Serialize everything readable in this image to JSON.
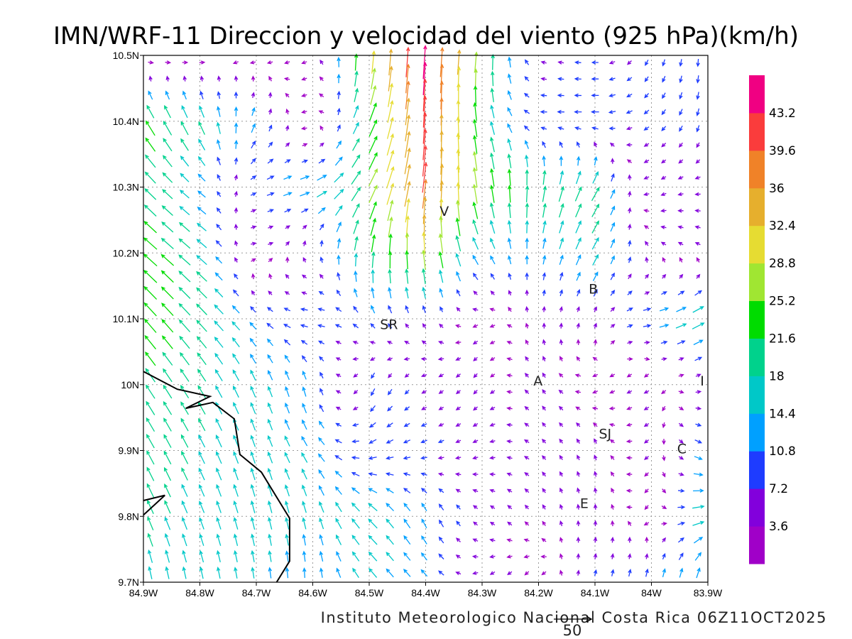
{
  "chart_data": {
    "type": "vector-field",
    "title": "IMN/WRF-11 Direccion y velocidad del viento (925 hPa)(km/h)",
    "credit": "Instituto Meteorologico Nacional Costa Rica 06Z11OCT2025",
    "reference_vector": {
      "value": 50,
      "label": "50"
    },
    "xlim": [
      -84.9,
      -83.9
    ],
    "ylim": [
      9.7,
      10.5
    ],
    "x_ticks": [
      {
        "v": -84.9,
        "label": "84.9W"
      },
      {
        "v": -84.8,
        "label": "84.8W"
      },
      {
        "v": -84.7,
        "label": "84.7W"
      },
      {
        "v": -84.6,
        "label": "84.6W"
      },
      {
        "v": -84.5,
        "label": "84.5W"
      },
      {
        "v": -84.4,
        "label": "84.4W"
      },
      {
        "v": -84.3,
        "label": "84.3W"
      },
      {
        "v": -84.2,
        "label": "84.2W"
      },
      {
        "v": -84.1,
        "label": "84.1W"
      },
      {
        "v": -84.0,
        "label": "84W"
      },
      {
        "v": -83.9,
        "label": "83.9W"
      }
    ],
    "y_ticks": [
      {
        "v": 10.5,
        "label": "10.5N"
      },
      {
        "v": 10.4,
        "label": "10.4N"
      },
      {
        "v": 10.3,
        "label": "10.3N"
      },
      {
        "v": 10.2,
        "label": "10.2N"
      },
      {
        "v": 10.1,
        "label": "10.1N"
      },
      {
        "v": 10.0,
        "label": "10N"
      },
      {
        "v": 9.9,
        "label": "9.9N"
      },
      {
        "v": 9.8,
        "label": "9.8N"
      },
      {
        "v": 9.7,
        "label": "9.7N"
      }
    ],
    "grid": true,
    "colorbar": {
      "labels": [
        "43.2",
        "39.6",
        "36",
        "32.4",
        "28.8",
        "25.2",
        "21.6",
        "18",
        "14.4",
        "10.8",
        "7.2",
        "3.6"
      ],
      "thresholds": [
        3.6,
        7.2,
        10.8,
        14.4,
        18,
        21.6,
        25.2,
        28.8,
        32.4,
        36,
        39.6,
        43.2
      ],
      "colors": [
        "#a000c8",
        "#8200dc",
        "#1e3cff",
        "#00a0ff",
        "#00c8c8",
        "#00d28c",
        "#00dc00",
        "#a0e632",
        "#e6dc32",
        "#e6af2d",
        "#f08228",
        "#fa3c3c",
        "#f00082"
      ]
    },
    "grid_lons": [
      -84.9,
      -84.8,
      -84.7,
      -84.6,
      -84.5,
      -84.4,
      -84.3,
      -84.2,
      -84.1,
      -84.0,
      -83.9
    ],
    "grid_lats": [
      10.5,
      10.4,
      10.3,
      10.2,
      10.1,
      10.0,
      9.9,
      9.8,
      9.7
    ],
    "wind_uv_kmh": [
      [
        [
          5,
          -3
        ],
        [
          3,
          -2
        ],
        [
          -3,
          -2
        ],
        [
          -3,
          -1
        ],
        [
          2,
          30
        ],
        [
          3,
          45
        ],
        [
          3,
          25
        ],
        [
          -6,
          2
        ],
        [
          -8,
          0
        ],
        [
          -3,
          -8
        ],
        [
          0,
          -10
        ]
      ],
      [
        [
          -12,
          20
        ],
        [
          -8,
          18
        ],
        [
          5,
          12
        ],
        [
          -5,
          -3
        ],
        [
          10,
          20
        ],
        [
          2,
          42
        ],
        [
          -4,
          20
        ],
        [
          -8,
          0
        ],
        [
          -10,
          0
        ],
        [
          -6,
          -5
        ],
        [
          -2,
          -10
        ]
      ],
      [
        [
          -15,
          15
        ],
        [
          -10,
          8
        ],
        [
          8,
          3
        ],
        [
          15,
          5
        ],
        [
          12,
          22
        ],
        [
          5,
          40
        ],
        [
          -5,
          25
        ],
        [
          3,
          22
        ],
        [
          10,
          18
        ],
        [
          -5,
          -3
        ],
        [
          -5,
          0
        ]
      ],
      [
        [
          -18,
          16
        ],
        [
          -14,
          12
        ],
        [
          5,
          0
        ],
        [
          -2,
          5
        ],
        [
          3,
          22
        ],
        [
          -3,
          28
        ],
        [
          -8,
          12
        ],
        [
          2,
          12
        ],
        [
          8,
          15
        ],
        [
          -3,
          3
        ],
        [
          -4,
          2
        ]
      ],
      [
        [
          -16,
          18
        ],
        [
          -14,
          15
        ],
        [
          -8,
          8
        ],
        [
          -10,
          0
        ],
        [
          -6,
          8
        ],
        [
          -3,
          6
        ],
        [
          -3,
          -2
        ],
        [
          0,
          4
        ],
        [
          2,
          5
        ],
        [
          12,
          2
        ],
        [
          18,
          10
        ]
      ],
      [
        [
          -12,
          18
        ],
        [
          -10,
          16
        ],
        [
          -6,
          14
        ],
        [
          -3,
          12
        ],
        [
          -4,
          -10
        ],
        [
          -5,
          -3
        ],
        [
          -3,
          -4
        ],
        [
          -3,
          5
        ],
        [
          -3,
          -2
        ],
        [
          -4,
          -2
        ],
        [
          5,
          2
        ]
      ],
      [
        [
          -10,
          18
        ],
        [
          -8,
          16
        ],
        [
          -5,
          15
        ],
        [
          -8,
          12
        ],
        [
          -10,
          -4
        ],
        [
          -8,
          -3
        ],
        [
          -5,
          -2
        ],
        [
          -3,
          3
        ],
        [
          -2,
          5
        ],
        [
          -3,
          -3
        ],
        [
          12,
          -5
        ]
      ],
      [
        [
          -8,
          18
        ],
        [
          -6,
          15
        ],
        [
          -4,
          16
        ],
        [
          -4,
          15
        ],
        [
          -12,
          12
        ],
        [
          -6,
          12
        ],
        [
          -4,
          3
        ],
        [
          -2,
          3
        ],
        [
          0,
          5
        ],
        [
          -2,
          -3
        ],
        [
          20,
          5
        ]
      ],
      [
        [
          -3,
          16
        ],
        [
          -3,
          15
        ],
        [
          -2,
          14
        ],
        [
          0,
          12
        ],
        [
          -10,
          12
        ],
        [
          -8,
          8
        ],
        [
          -4,
          -3
        ],
        [
          -2,
          -3
        ],
        [
          2,
          8
        ],
        [
          3,
          12
        ],
        [
          2,
          15
        ]
      ]
    ],
    "coastline": [
      [
        [
          -84.9,
          10.02
        ],
        [
          -84.84,
          9.993
        ],
        [
          -84.782,
          9.982
        ],
        [
          -84.825,
          9.964
        ],
        [
          -84.777,
          9.973
        ],
        [
          -84.739,
          9.948
        ],
        [
          -84.729,
          9.894
        ],
        [
          -84.691,
          9.867
        ],
        [
          -84.641,
          9.797
        ],
        [
          -84.641,
          9.732
        ],
        [
          -84.664,
          9.7
        ]
      ],
      [
        [
          -84.9,
          9.824
        ],
        [
          -84.862,
          9.832
        ],
        [
          -84.9,
          9.802
        ]
      ]
    ],
    "stations": [
      {
        "label": "V",
        "lon": -84.367,
        "lat": 10.264
      },
      {
        "label": "SR",
        "lon": -84.465,
        "lat": 10.092
      },
      {
        "label": "B",
        "lon": -84.103,
        "lat": 10.146
      },
      {
        "label": "A",
        "lon": -84.201,
        "lat": 10.006
      },
      {
        "label": "SJ",
        "lon": -84.082,
        "lat": 9.926
      },
      {
        "label": "C",
        "lon": -83.946,
        "lat": 9.903
      },
      {
        "label": "E",
        "lon": -84.119,
        "lat": 9.82
      },
      {
        "label": "I",
        "lon": -83.91,
        "lat": 10.006
      }
    ]
  }
}
